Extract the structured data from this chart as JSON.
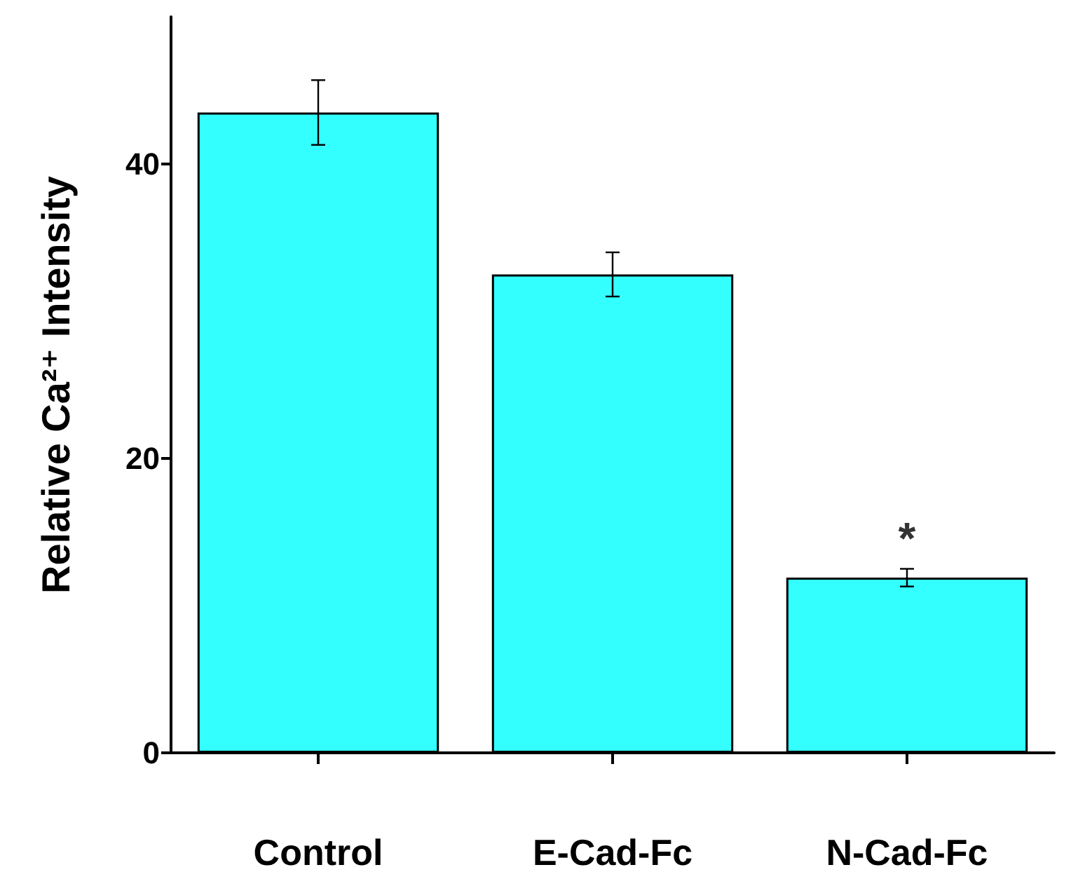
{
  "chart_data": {
    "type": "bar",
    "ylabel": "Relative Ca²⁺ Intensity",
    "categories": [
      "Control",
      "E-Cad-Fc",
      "N-Cad-Fc"
    ],
    "values": [
      43.5,
      32.5,
      11.9
    ],
    "errors": [
      2.2,
      1.5,
      0.6
    ],
    "color": "#33ffff",
    "ylim": [
      0,
      50
    ],
    "yticks": [
      0,
      20,
      40
    ],
    "grid": false,
    "annotations": [
      {
        "text": "*",
        "x": "N-Cad-Fc",
        "y": 12.5
      }
    ]
  }
}
